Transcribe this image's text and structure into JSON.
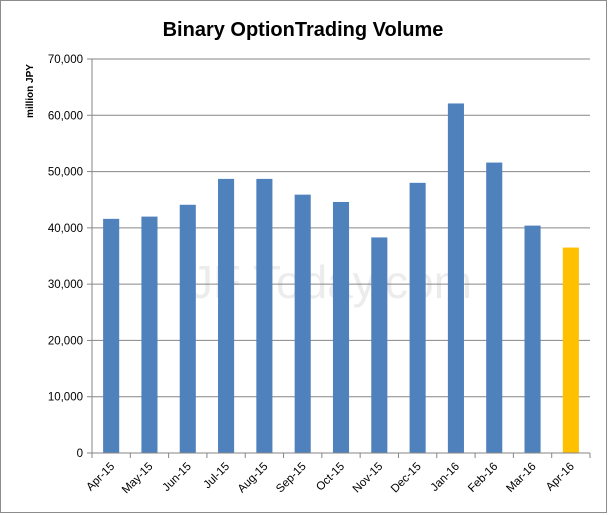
{
  "chart_data": {
    "type": "bar",
    "title": "Binary OptionTrading Volume",
    "xlabel": "",
    "ylabel": "million JPY",
    "categories": [
      "Apr-15",
      "May-15",
      "Jun-15",
      "Jul-15",
      "Aug-15",
      "Sep-15",
      "Oct-15",
      "Nov-15",
      "Dec-15",
      "Jan-16",
      "Feb-16",
      "Mar-16",
      "Apr-16"
    ],
    "values": [
      41600,
      42000,
      44100,
      48700,
      48700,
      45900,
      44600,
      38300,
      48000,
      62100,
      51600,
      40400,
      36500
    ],
    "ylim": [
      0,
      70000
    ],
    "yticks": [
      0,
      10000,
      20000,
      30000,
      40000,
      50000,
      60000,
      70000
    ],
    "ytick_labels": [
      "0",
      "10,000",
      "20,000",
      "30,000",
      "40,000",
      "50,000",
      "60,000",
      "70,000"
    ],
    "grid": true,
    "legend": "none",
    "colors": {
      "default_bar": "#4f81bd",
      "highlight_bar": "#ffc000",
      "gridline": "#868686",
      "axis": "#868686"
    },
    "highlight_index": 12,
    "watermark": "JF Today.com"
  }
}
